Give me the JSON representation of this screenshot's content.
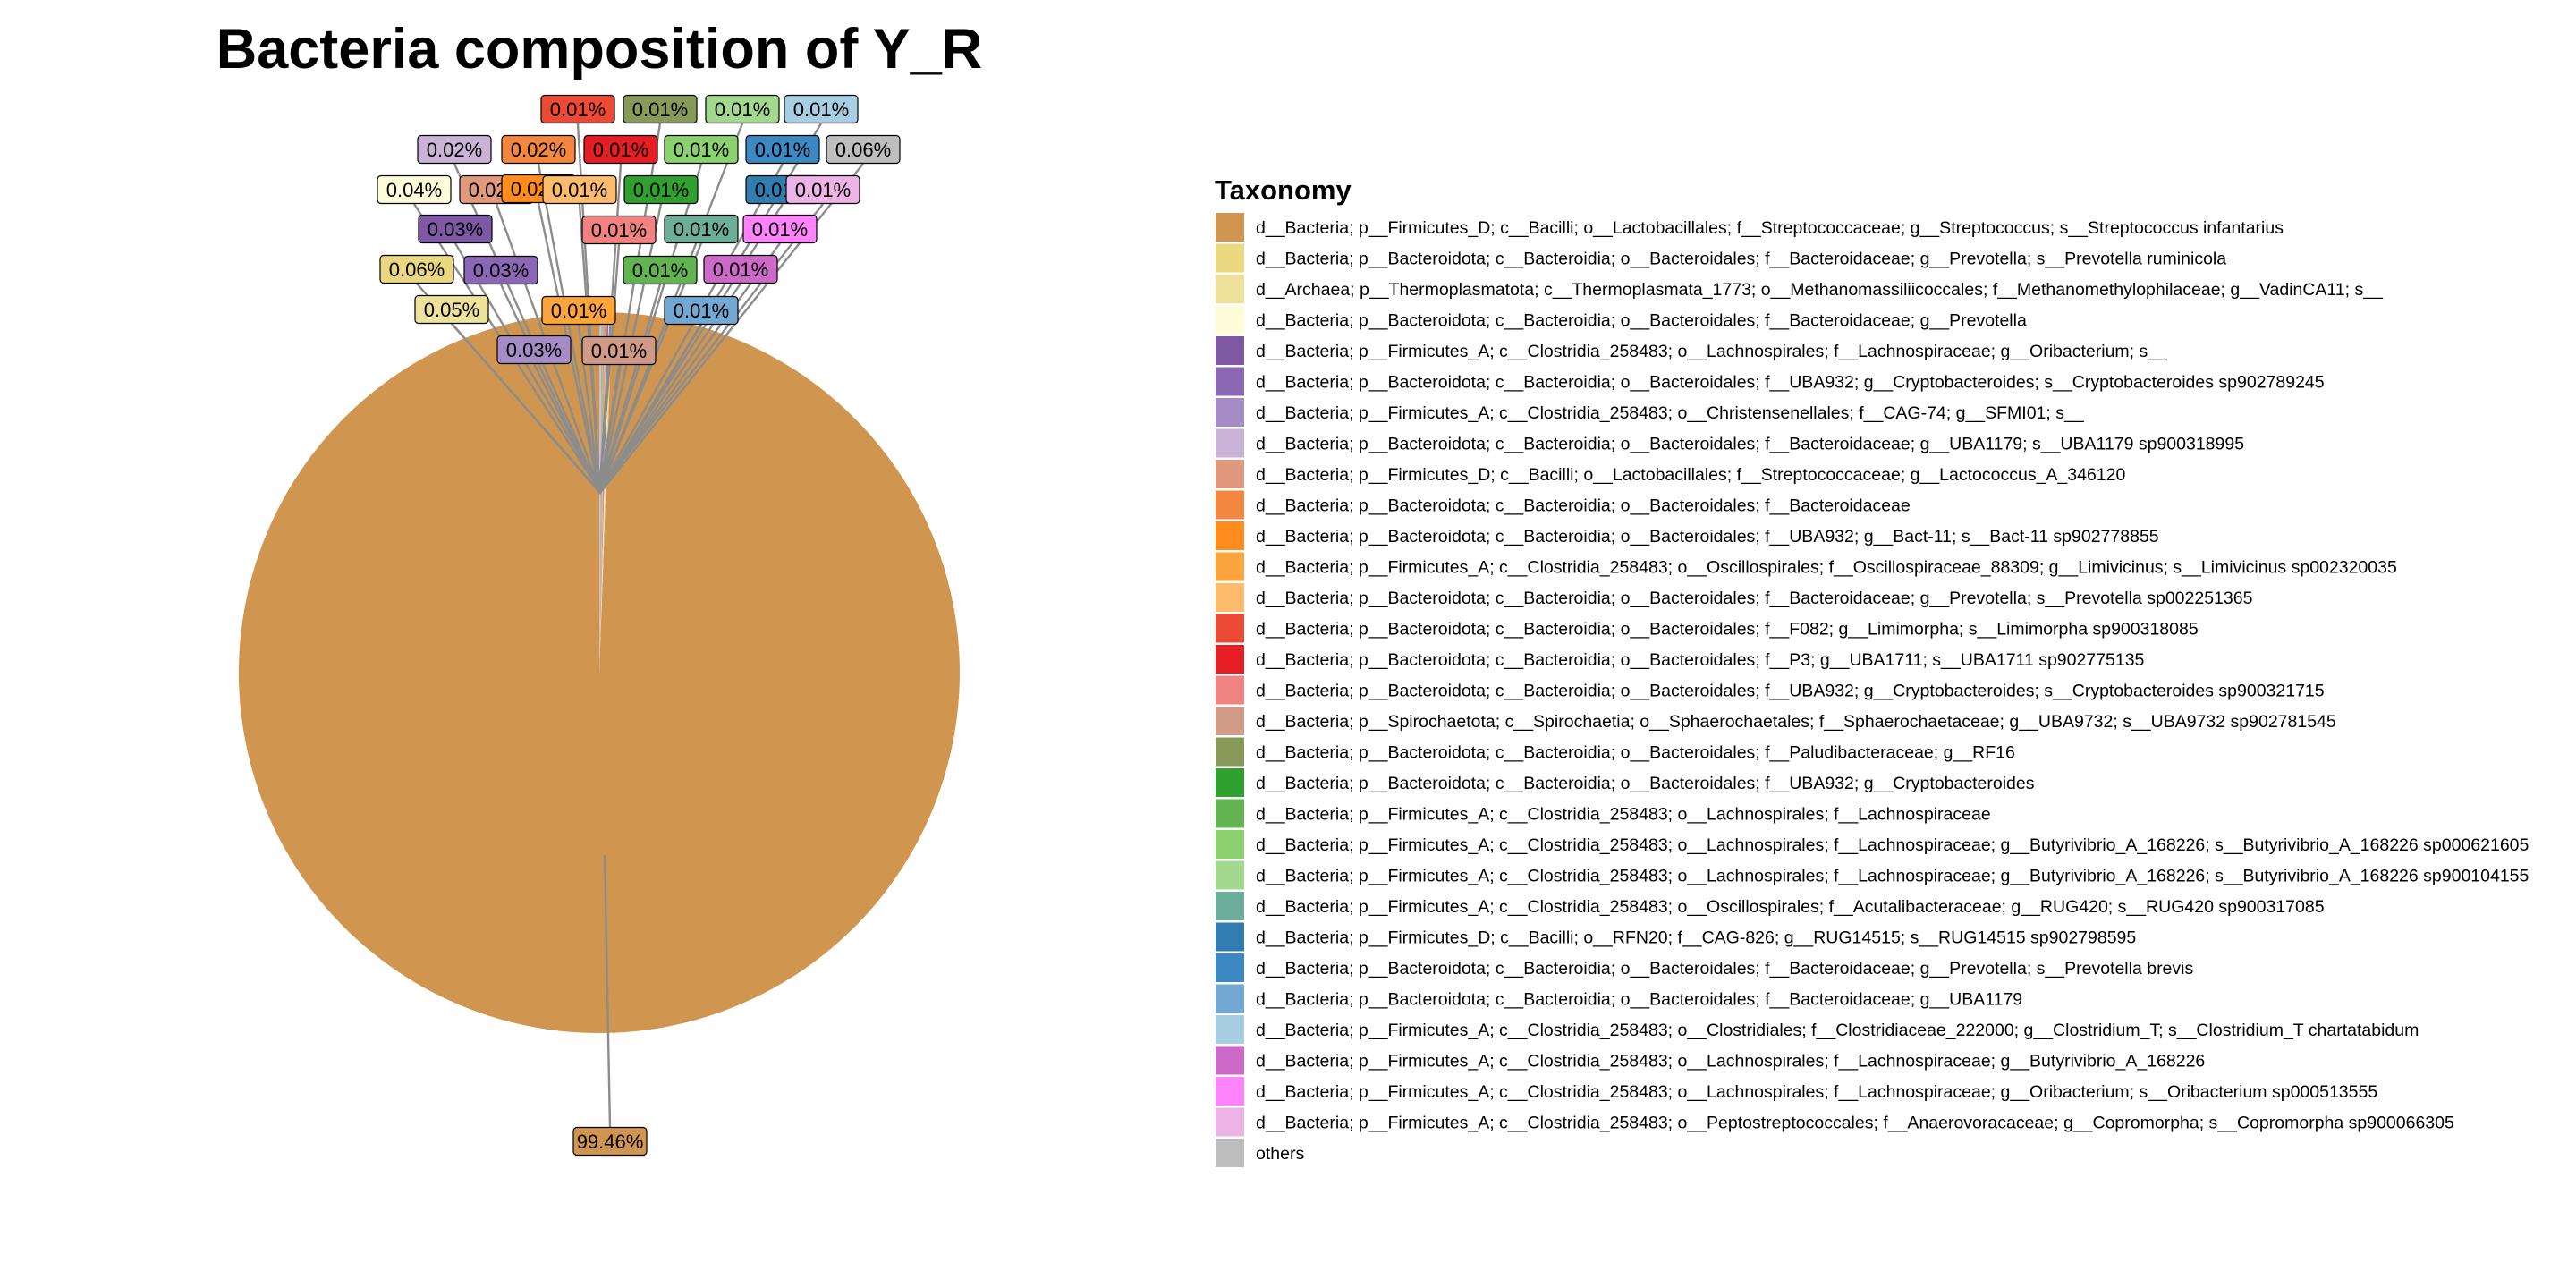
{
  "chart_data": {
    "type": "pie",
    "title": "Bacteria composition of Y_R",
    "legend_title": "Taxonomy",
    "legend_position": "right",
    "slices": [
      {
        "name": "d__Bacteria; p__Firmicutes_D; c__Bacilli; o__Lactobacillales; f__Streptococcaceae; g__Streptococcus; s__Streptococcus infantarius",
        "value": 99.46,
        "label": "99.46%",
        "color": "#D0954F"
      },
      {
        "name": "d__Bacteria; p__Bacteroidota; c__Bacteroidia; o__Bacteroidales; f__Bacteroidaceae; g__Prevotella; s__Prevotella ruminicola",
        "value": 0.06,
        "label": "0.06%",
        "color": "#EAD77F"
      },
      {
        "name": "d__Archaea; p__Thermoplasmatota; c__Thermoplasmata_1773; o__Methanomassiliicoccales; f__Methanomethylophilaceae; g__VadinCA11; s__",
        "value": 0.05,
        "label": "0.05%",
        "color": "#EEE19A"
      },
      {
        "name": "d__Bacteria; p__Bacteroidota; c__Bacteroidia; o__Bacteroidales; f__Bacteroidaceae; g__Prevotella",
        "value": 0.04,
        "label": "0.04%",
        "color": "#FEFCD9"
      },
      {
        "name": "d__Bacteria; p__Firmicutes_A; c__Clostridia_258483; o__Lachnospirales; f__Lachnospiraceae; g__Oribacterium; s__",
        "value": 0.03,
        "label": "0.03%",
        "color": "#7E58A3"
      },
      {
        "name": "d__Bacteria; p__Bacteroidota; c__Bacteroidia; o__Bacteroidales; f__UBA932; g__Cryptobacteroides; s__Cryptobacteroides sp902789245",
        "value": 0.03,
        "label": "0.03%",
        "color": "#8B67B6"
      },
      {
        "name": "d__Bacteria; p__Firmicutes_A; c__Clostridia_258483; o__Christensenellales; f__CAG-74; g__SFMI01; s__",
        "value": 0.03,
        "label": "0.03%",
        "color": "#A68CC6"
      },
      {
        "name": "d__Bacteria; p__Bacteroidota; c__Bacteroidia; o__Bacteroidales; f__Bacteroidaceae; g__UBA1179; s__UBA1179 sp900318995",
        "value": 0.02,
        "label": "0.02%",
        "color": "#CAB3D6"
      },
      {
        "name": "d__Bacteria; p__Firmicutes_D; c__Bacilli; o__Lactobacillales; f__Streptococcaceae; g__Lactococcus_A_346120",
        "value": 0.02,
        "label": "0.02%",
        "color": "#E0997C"
      },
      {
        "name": "d__Bacteria; p__Bacteroidota; c__Bacteroidia; o__Bacteroidales; f__Bacteroidaceae",
        "value": 0.02,
        "label": "0.02%",
        "color": "#F3873F"
      },
      {
        "name": "d__Bacteria; p__Bacteroidota; c__Bacteroidia; o__Bacteroidales; f__UBA932; g__Bact-11; s__Bact-11 sp902778855",
        "value": 0.02,
        "label": "0.02%",
        "color": "#FF8C1C"
      },
      {
        "name": "d__Bacteria; p__Firmicutes_A; c__Clostridia_258483; o__Oscillospirales; f__Oscillospiraceae_88309; g__Limivicinus; s__Limivicinus sp002320035",
        "value": 0.01,
        "label": "0.01%",
        "color": "#FDA53D"
      },
      {
        "name": "d__Bacteria; p__Bacteroidota; c__Bacteroidia; o__Bacteroidales; f__Bacteroidaceae; g__Prevotella; s__Prevotella sp002251365",
        "value": 0.01,
        "label": "0.01%",
        "color": "#FDBB6C"
      },
      {
        "name": "d__Bacteria; p__Bacteroidota; c__Bacteroidia; o__Bacteroidales; f__F082; g__Limimorpha; s__Limimorpha sp900318085",
        "value": 0.01,
        "label": "0.01%",
        "color": "#EC4A35"
      },
      {
        "name": "d__Bacteria; p__Bacteroidota; c__Bacteroidia; o__Bacteroidales; f__P3; g__UBA1711; s__UBA1711 sp902775135",
        "value": 0.01,
        "label": "0.01%",
        "color": "#E41E23"
      },
      {
        "name": "d__Bacteria; p__Bacteroidota; c__Bacteroidia; o__Bacteroidales; f__UBA932; g__Cryptobacteroides; s__Cryptobacteroides sp900321715",
        "value": 0.01,
        "label": "0.01%",
        "color": "#F08282"
      },
      {
        "name": "d__Bacteria; p__Spirochaetota; c__Spirochaetia; o__Sphaerochaetales; f__Sphaerochaetaceae; g__UBA9732; s__UBA9732 sp902781545",
        "value": 0.01,
        "label": "0.01%",
        "color": "#D19A86"
      },
      {
        "name": "d__Bacteria; p__Bacteroidota; c__Bacteroidia; o__Bacteroidales; f__Paludibacteraceae; g__RF16",
        "value": 0.01,
        "label": "0.01%",
        "color": "#879A57"
      },
      {
        "name": "d__Bacteria; p__Bacteroidota; c__Bacteroidia; o__Bacteroidales; f__UBA932; g__Cryptobacteroides",
        "value": 0.01,
        "label": "0.01%",
        "color": "#2FA12F"
      },
      {
        "name": "d__Bacteria; p__Firmicutes_A; c__Clostridia_258483; o__Lachnospirales; f__Lachnospiraceae",
        "value": 0.01,
        "label": "0.01%",
        "color": "#62B450"
      },
      {
        "name": "d__Bacteria; p__Firmicutes_A; c__Clostridia_258483; o__Lachnospirales; f__Lachnospiraceae; g__Butyrivibrio_A_168226; s__Butyrivibrio_A_168226 sp000621605",
        "value": 0.01,
        "label": "0.01%",
        "color": "#8CD170"
      },
      {
        "name": "d__Bacteria; p__Firmicutes_A; c__Clostridia_258483; o__Lachnospirales; f__Lachnospiraceae; g__Butyrivibrio_A_168226; s__Butyrivibrio_A_168226 sp900104155",
        "value": 0.01,
        "label": "0.01%",
        "color": "#A2D98E"
      },
      {
        "name": "d__Bacteria; p__Firmicutes_A; c__Clostridia_258483; o__Oscillospirales; f__Acutalibacteraceae; g__RUG420; s__RUG420 sp900317085",
        "value": 0.01,
        "label": "0.01%",
        "color": "#6DAE9B"
      },
      {
        "name": "d__Bacteria; p__Firmicutes_D; c__Bacilli; o__RFN20; f__CAG-826; g__RUG14515; s__RUG14515 sp902798595",
        "value": 0.01,
        "label": "0.01%",
        "color": "#2F7EAF"
      },
      {
        "name": "d__Bacteria; p__Bacteroidota; c__Bacteroidia; o__Bacteroidales; f__Bacteroidaceae; g__Prevotella; s__Prevotella brevis",
        "value": 0.01,
        "label": "0.01%",
        "color": "#3C88C2"
      },
      {
        "name": "d__Bacteria; p__Bacteroidota; c__Bacteroidia; o__Bacteroidales; f__Bacteroidaceae; g__UBA1179",
        "value": 0.01,
        "label": "0.01%",
        "color": "#73A8D2"
      },
      {
        "name": "d__Bacteria; p__Firmicutes_A; c__Clostridia_258483; o__Clostridiales; f__Clostridiaceae_222000; g__Clostridium_T; s__Clostridium_T chartatabidum",
        "value": 0.01,
        "label": "0.01%",
        "color": "#A8CEE4"
      },
      {
        "name": "d__Bacteria; p__Firmicutes_A; c__Clostridia_258483; o__Lachnospirales; f__Lachnospiraceae; g__Butyrivibrio_A_168226",
        "value": 0.01,
        "label": "0.01%",
        "color": "#CD69C9"
      },
      {
        "name": "d__Bacteria; p__Firmicutes_A; c__Clostridia_258483; o__Lachnospirales; f__Lachnospiraceae; g__Oribacterium; s__Oribacterium sp000513555",
        "value": 0.01,
        "label": "0.01%",
        "color": "#FF83FA"
      },
      {
        "name": "d__Bacteria; p__Firmicutes_A; c__Clostridia_258483; o__Peptostreptococcales; f__Anaerovoracaceae; g__Copromorpha; s__Copromorpha sp900066305",
        "value": 0.01,
        "label": "0.01%",
        "color": "#EDB3E6"
      },
      {
        "name": "others",
        "value": 0.06,
        "label": "0.06%",
        "color": "#BEBEBE"
      }
    ]
  }
}
